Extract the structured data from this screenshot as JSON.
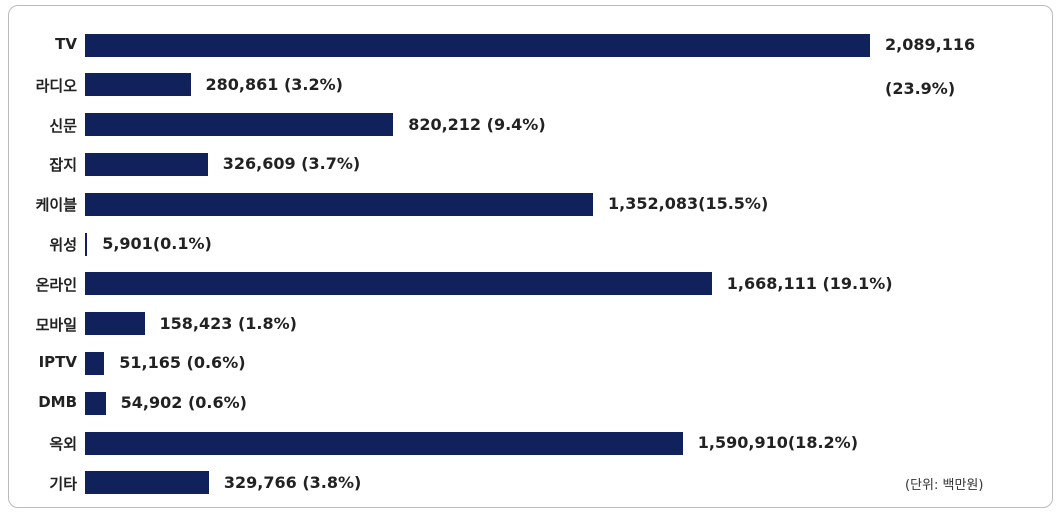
{
  "chart_data": {
    "type": "barh",
    "categories": [
      "TV",
      "라디오",
      "신문",
      "잡지",
      "케이블",
      "위성",
      "온라인",
      "모바일",
      "IPTV",
      "DMB",
      "옥외",
      "기타"
    ],
    "values": [
      2089116,
      280861,
      820212,
      326609,
      1352083,
      5901,
      1668111,
      158423,
      51165,
      54902,
      1590910,
      329766
    ],
    "value_labels": [
      "2,089,116\n(23.9%)",
      "280,861 (3.2%)",
      "820,212 (9.4%)",
      "326,609 (3.7%)",
      "1,352,083(15.5%)",
      "5,901(0.1%)",
      "1,668,111 (19.1%)",
      "158,423 (1.8%)",
      "51,165 (0.6%)",
      "54,902 (0.6%)",
      "1,590,910(18.2%)",
      "329,766 (3.8%)"
    ],
    "color": "#10215c",
    "annotation": "(단위: 백만원)"
  }
}
